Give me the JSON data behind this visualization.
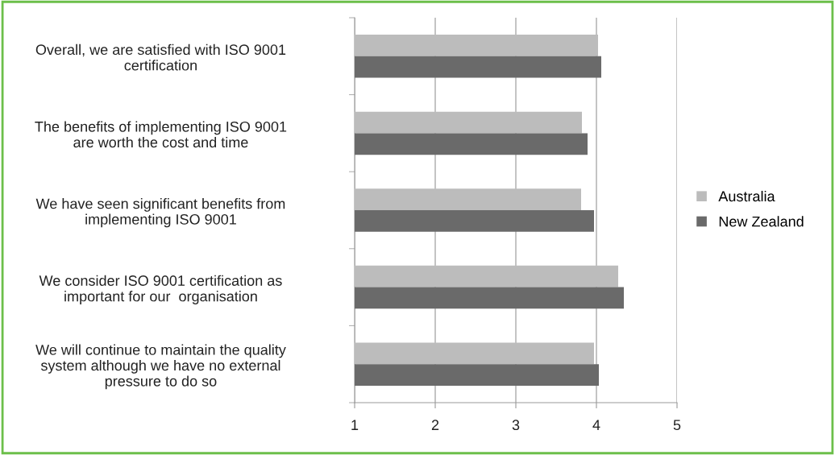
{
  "chart_data": {
    "type": "bar",
    "orientation": "horizontal",
    "categories": [
      "Overall, we are satisfied with ISO 9001\ncertification",
      "The benefits of implementing ISO 9001\nare worth the cost and time",
      "We have seen significant benefits from\nimplementing ISO 9001",
      "We consider ISO 9001 certification as\nimportant for our  organisation",
      "We will continue to maintain the quality\nsystem although we have no external\npressure to do so"
    ],
    "series": [
      {
        "name": "Australia",
        "color": "#bcbcbc",
        "values": [
          4.02,
          3.82,
          3.81,
          4.27,
          3.97
        ]
      },
      {
        "name": "New Zealand",
        "color": "#6a6a6a",
        "values": [
          4.06,
          3.89,
          3.97,
          4.34,
          4.03
        ]
      }
    ],
    "xlim": [
      1,
      5
    ],
    "xticks": [
      1,
      2,
      3,
      4,
      5
    ],
    "grid": "x",
    "legend": "right"
  }
}
